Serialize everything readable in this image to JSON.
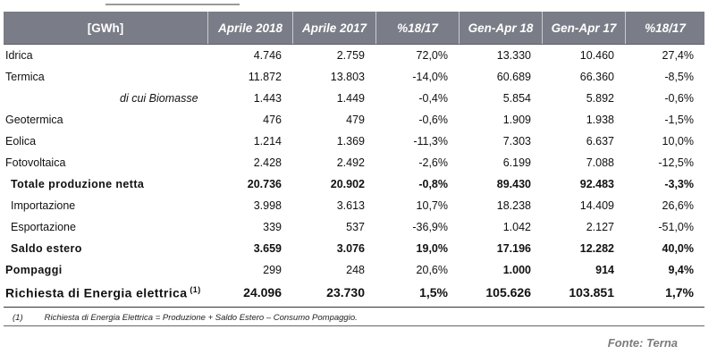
{
  "table": {
    "headers": [
      "[GWh]",
      "Aprile 2018",
      "Aprile 2017",
      "%18/17",
      "Gen-Apr 18",
      "Gen-Apr 17",
      "%18/17"
    ],
    "rows": [
      {
        "label": "Idrica",
        "a18": "4.746",
        "a17": "2.759",
        "p1": "72,0%",
        "g18": "13.330",
        "g17": "10.460",
        "p2": "27,4%"
      },
      {
        "label": "Termica",
        "a18": "11.872",
        "a17": "13.803",
        "p1": "-14,0%",
        "g18": "60.689",
        "g17": "66.360",
        "p2": "-8,5%"
      },
      {
        "label": "di cui Biomasse",
        "a18": "1.443",
        "a17": "1.449",
        "p1": "-0,4%",
        "g18": "5.854",
        "g17": "5.892",
        "p2": "-0,6%"
      },
      {
        "label": "Geotermica",
        "a18": "476",
        "a17": "479",
        "p1": "-0,6%",
        "g18": "1.909",
        "g17": "1.938",
        "p2": "-1,5%"
      },
      {
        "label": "Eolica",
        "a18": "1.214",
        "a17": "1.369",
        "p1": "-11,3%",
        "g18": "7.303",
        "g17": "6.637",
        "p2": "10,0%"
      },
      {
        "label": "Fotovoltaica",
        "a18": "2.428",
        "a17": "2.492",
        "p1": "-2,6%",
        "g18": "6.199",
        "g17": "7.088",
        "p2": "-12,5%"
      },
      {
        "label": "Totale produzione netta",
        "a18": "20.736",
        "a17": "20.902",
        "p1": "-0,8%",
        "g18": "89.430",
        "g17": "92.483",
        "p2": "-3,3%"
      },
      {
        "label": "Importazione",
        "a18": "3.998",
        "a17": "3.613",
        "p1": "10,7%",
        "g18": "18.238",
        "g17": "14.409",
        "p2": "26,6%"
      },
      {
        "label": "Esportazione",
        "a18": "339",
        "a17": "537",
        "p1": "-36,9%",
        "g18": "1.042",
        "g17": "2.127",
        "p2": "-51,0%"
      },
      {
        "label": "Saldo estero",
        "a18": "3.659",
        "a17": "3.076",
        "p1": "19,0%",
        "g18": "17.196",
        "g17": "12.282",
        "p2": "40,0%"
      },
      {
        "label": "Pompaggi",
        "a18": "299",
        "a17": "248",
        "p1": "20,6%",
        "g18": "1.000",
        "g17": "914",
        "p2": "9,4%"
      },
      {
        "label": "Richiesta di Energia elettrica",
        "sup": "(1)",
        "a18": "24.096",
        "a17": "23.730",
        "p1": "1,5%",
        "g18": "105.626",
        "g17": "103.851",
        "p2": "1,7%"
      }
    ]
  },
  "footnote": {
    "mark": "(1)",
    "text": "Richiesta di Energia Elettrica = Produzione + Saldo Estero – Consumo Pompaggio."
  },
  "source": "Fonte: Terna"
}
